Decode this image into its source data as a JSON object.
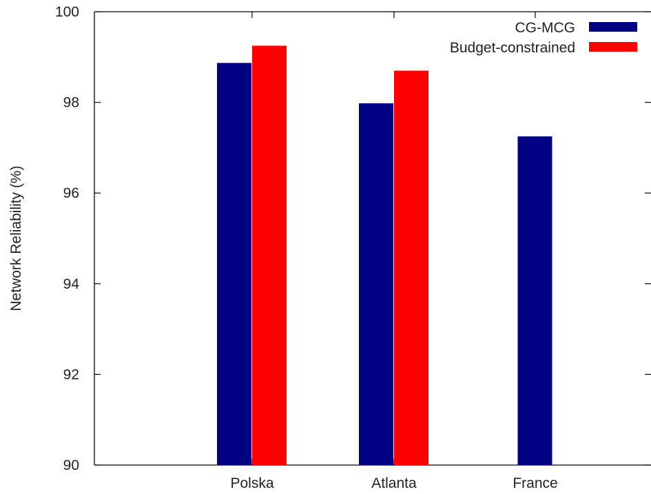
{
  "chart_data": {
    "type": "bar",
    "title": "",
    "xlabel": "",
    "ylabel": "Network Reliability (%)",
    "ylim": [
      90,
      100
    ],
    "yticks": [
      "90",
      "92",
      "94",
      "96",
      "98",
      "100"
    ],
    "categories": [
      "Polska",
      "Atlanta",
      "France"
    ],
    "series": [
      {
        "name": "CG-MCG",
        "color": "#000080",
        "values": [
          98.87,
          97.98,
          97.25
        ]
      },
      {
        "name": "Budget-constrained",
        "color": "#ff0000",
        "values": [
          99.25,
          98.7,
          null
        ]
      }
    ],
    "grid": false,
    "legend_position": "top-right"
  }
}
